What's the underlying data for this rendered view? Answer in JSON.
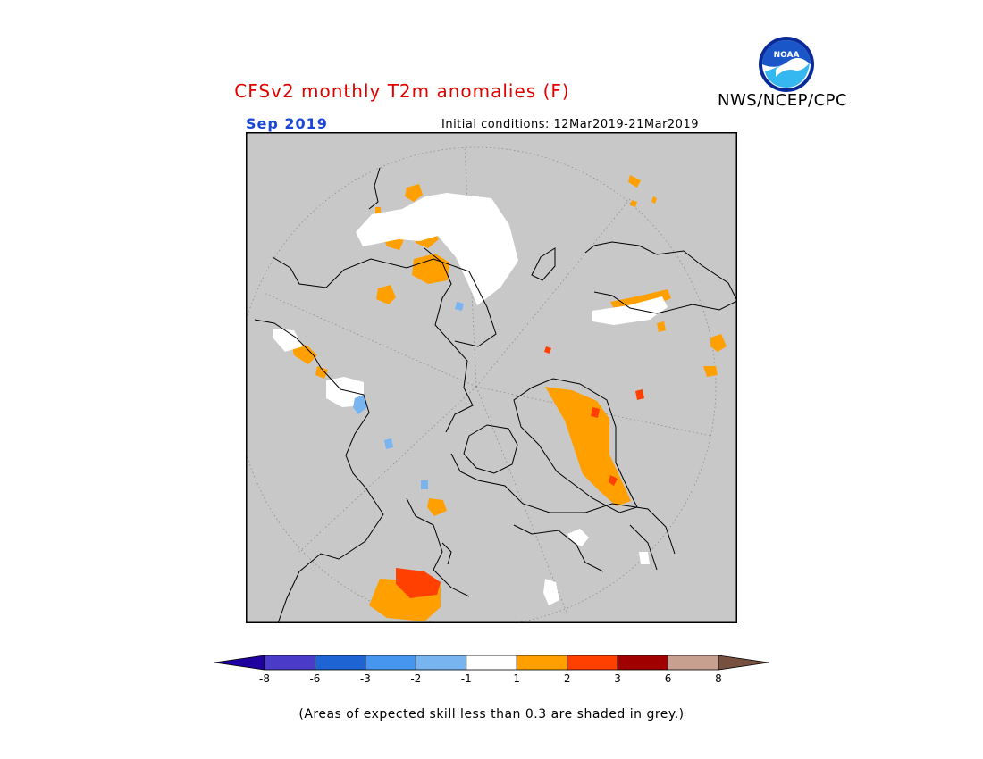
{
  "header": {
    "title": "CFSv2 monthly T2m anomalies (F)",
    "org": "NWS/NCEP/CPC",
    "logo_text": "NOAA"
  },
  "map": {
    "valid_month": "Sep 2019",
    "initial_conditions": "Initial conditions: 12Mar2019-21Mar2019",
    "projection": "north-polar-stereographic",
    "background_color": "#c8c8c8"
  },
  "colorbar": {
    "ticks": [
      "-8",
      "-6",
      "-3",
      "-2",
      "-1",
      "1",
      "2",
      "3",
      "6",
      "8"
    ],
    "colors": [
      "#1e00a0",
      "#4a3cc8",
      "#1e64d2",
      "#4696f0",
      "#78b4f0",
      "#ffffff",
      "#ffa000",
      "#ff4000",
      "#a00000",
      "#c8a090",
      "#785040"
    ]
  },
  "footer": {
    "note": "(Areas of expected skill less than 0.3 are shaded in grey.)"
  }
}
